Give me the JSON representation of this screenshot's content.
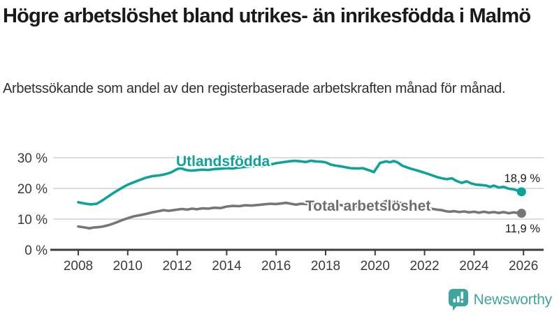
{
  "header": {
    "title": "Högre arbetslöshet bland utrikes- än inrikesfödda i Malmö",
    "subtitle": "Arbetssökande som andel av den registerbaserade arbetskraften månad för månad."
  },
  "chart_data": {
    "type": "line",
    "title": "Högre arbetslöshet bland utrikes- än inrikesfödda i Malmö",
    "xlabel": "",
    "ylabel": "",
    "grid": "horizontal",
    "legend": "inline-labels",
    "x_axis": {
      "ticks": [
        2008,
        2010,
        2012,
        2014,
        2016,
        2018,
        2020,
        2022,
        2024,
        2026
      ],
      "tick_labels": [
        "2008",
        "2010",
        "2012",
        "2014",
        "2016",
        "2018",
        "2020",
        "2022",
        "2024",
        "2026"
      ],
      "range": [
        2007,
        2026.7
      ]
    },
    "y_axis": {
      "ticks": [
        0,
        10,
        20,
        30
      ],
      "tick_labels": [
        "0 %",
        "10 %",
        "20 %",
        "30 %"
      ],
      "range": [
        0,
        32
      ],
      "unit": "%"
    },
    "series": [
      {
        "name": "Utlandsfödda",
        "color": "#0ba39a",
        "label_color": "#0ba39a",
        "end_label": "18,9 %",
        "end_value": 18.9,
        "points": [
          [
            2008.0,
            15.5
          ],
          [
            2008.25,
            15.1
          ],
          [
            2008.5,
            14.8
          ],
          [
            2008.75,
            15.0
          ],
          [
            2009.0,
            16.2
          ],
          [
            2009.25,
            17.6
          ],
          [
            2009.5,
            18.9
          ],
          [
            2009.75,
            20.1
          ],
          [
            2010.0,
            21.2
          ],
          [
            2010.25,
            22.0
          ],
          [
            2010.5,
            22.8
          ],
          [
            2010.75,
            23.5
          ],
          [
            2011.0,
            24.0
          ],
          [
            2011.25,
            24.2
          ],
          [
            2011.5,
            24.6
          ],
          [
            2011.75,
            25.2
          ],
          [
            2012.0,
            26.3
          ],
          [
            2012.15,
            26.6
          ],
          [
            2012.35,
            26.0
          ],
          [
            2012.55,
            25.8
          ],
          [
            2012.75,
            25.9
          ],
          [
            2013.0,
            26.1
          ],
          [
            2013.25,
            26.0
          ],
          [
            2013.5,
            26.3
          ],
          [
            2013.75,
            26.4
          ],
          [
            2014.0,
            26.6
          ],
          [
            2014.25,
            26.5
          ],
          [
            2014.5,
            26.8
          ],
          [
            2014.75,
            27.0
          ],
          [
            2015.0,
            27.2
          ],
          [
            2015.25,
            27.3
          ],
          [
            2015.5,
            27.2
          ],
          [
            2015.75,
            27.7
          ],
          [
            2016.0,
            28.2
          ],
          [
            2016.25,
            28.5
          ],
          [
            2016.5,
            28.8
          ],
          [
            2016.75,
            29.0
          ],
          [
            2017.0,
            28.8
          ],
          [
            2017.2,
            28.6
          ],
          [
            2017.4,
            29.0
          ],
          [
            2017.6,
            28.8
          ],
          [
            2017.8,
            28.7
          ],
          [
            2018.0,
            28.5
          ],
          [
            2018.2,
            27.8
          ],
          [
            2018.4,
            27.4
          ],
          [
            2018.6,
            27.2
          ],
          [
            2018.8,
            26.9
          ],
          [
            2019.0,
            26.6
          ],
          [
            2019.3,
            26.5
          ],
          [
            2019.5,
            26.6
          ],
          [
            2019.8,
            25.8
          ],
          [
            2019.95,
            25.3
          ],
          [
            2020.2,
            28.3
          ],
          [
            2020.45,
            28.8
          ],
          [
            2020.6,
            28.5
          ],
          [
            2020.75,
            28.9
          ],
          [
            2020.9,
            28.5
          ],
          [
            2021.1,
            27.4
          ],
          [
            2021.3,
            26.8
          ],
          [
            2021.5,
            26.3
          ],
          [
            2021.75,
            25.7
          ],
          [
            2022.0,
            25.1
          ],
          [
            2022.25,
            24.4
          ],
          [
            2022.5,
            23.7
          ],
          [
            2022.7,
            23.3
          ],
          [
            2022.9,
            23.0
          ],
          [
            2023.1,
            23.3
          ],
          [
            2023.3,
            22.4
          ],
          [
            2023.5,
            21.8
          ],
          [
            2023.7,
            22.3
          ],
          [
            2023.9,
            21.6
          ],
          [
            2024.1,
            21.2
          ],
          [
            2024.3,
            21.1
          ],
          [
            2024.5,
            20.9
          ],
          [
            2024.65,
            20.5
          ],
          [
            2024.8,
            20.9
          ],
          [
            2025.0,
            20.3
          ],
          [
            2025.2,
            20.5
          ],
          [
            2025.4,
            19.9
          ],
          [
            2025.6,
            19.7
          ],
          [
            2025.75,
            19.3
          ],
          [
            2025.92,
            18.9
          ]
        ]
      },
      {
        "name": "Total arbetslöshet",
        "color": "#767676",
        "label_color": "#6e6e6e",
        "end_label": "11,9 %",
        "end_value": 11.9,
        "points": [
          [
            2008.0,
            7.6
          ],
          [
            2008.25,
            7.3
          ],
          [
            2008.45,
            7.0
          ],
          [
            2008.65,
            7.3
          ],
          [
            2008.85,
            7.4
          ],
          [
            2009.0,
            7.6
          ],
          [
            2009.25,
            8.1
          ],
          [
            2009.5,
            8.8
          ],
          [
            2009.75,
            9.6
          ],
          [
            2010.0,
            10.3
          ],
          [
            2010.25,
            10.9
          ],
          [
            2010.5,
            11.3
          ],
          [
            2010.75,
            11.7
          ],
          [
            2011.0,
            12.2
          ],
          [
            2011.25,
            12.6
          ],
          [
            2011.45,
            12.9
          ],
          [
            2011.65,
            12.7
          ],
          [
            2011.85,
            12.9
          ],
          [
            2012.0,
            13.1
          ],
          [
            2012.2,
            13.3
          ],
          [
            2012.4,
            13.1
          ],
          [
            2012.6,
            13.4
          ],
          [
            2012.8,
            13.2
          ],
          [
            2013.0,
            13.5
          ],
          [
            2013.25,
            13.4
          ],
          [
            2013.5,
            13.7
          ],
          [
            2013.75,
            13.6
          ],
          [
            2014.0,
            14.1
          ],
          [
            2014.25,
            14.3
          ],
          [
            2014.5,
            14.2
          ],
          [
            2014.75,
            14.5
          ],
          [
            2015.0,
            14.4
          ],
          [
            2015.25,
            14.6
          ],
          [
            2015.5,
            14.8
          ],
          [
            2015.75,
            15.0
          ],
          [
            2016.0,
            14.9
          ],
          [
            2016.2,
            15.1
          ],
          [
            2016.4,
            15.3
          ],
          [
            2016.6,
            15.0
          ],
          [
            2016.8,
            14.7
          ],
          [
            2017.0,
            15.0
          ],
          [
            2017.25,
            14.9
          ],
          [
            2017.5,
            15.1
          ],
          [
            2017.75,
            14.9
          ],
          [
            2018.0,
            14.8
          ],
          [
            2018.25,
            14.6
          ],
          [
            2018.5,
            14.7
          ],
          [
            2018.75,
            14.4
          ],
          [
            2019.0,
            14.3
          ],
          [
            2019.25,
            14.2
          ],
          [
            2019.5,
            14.1
          ],
          [
            2019.75,
            14.3
          ],
          [
            2020.0,
            14.2
          ],
          [
            2020.25,
            15.2
          ],
          [
            2020.5,
            16.0
          ],
          [
            2020.75,
            15.6
          ],
          [
            2021.0,
            15.3
          ],
          [
            2021.25,
            15.0
          ],
          [
            2021.5,
            14.6
          ],
          [
            2021.75,
            14.2
          ],
          [
            2022.0,
            13.8
          ],
          [
            2022.25,
            13.4
          ],
          [
            2022.5,
            13.1
          ],
          [
            2022.7,
            12.9
          ],
          [
            2022.85,
            12.6
          ],
          [
            2023.0,
            12.4
          ],
          [
            2023.2,
            12.6
          ],
          [
            2023.4,
            12.3
          ],
          [
            2023.6,
            12.5
          ],
          [
            2023.8,
            12.2
          ],
          [
            2024.0,
            12.4
          ],
          [
            2024.2,
            12.1
          ],
          [
            2024.4,
            12.4
          ],
          [
            2024.6,
            12.1
          ],
          [
            2024.8,
            12.3
          ],
          [
            2025.0,
            12.0
          ],
          [
            2025.2,
            12.3
          ],
          [
            2025.4,
            11.9
          ],
          [
            2025.6,
            12.2
          ],
          [
            2025.75,
            12.0
          ],
          [
            2025.92,
            11.9
          ]
        ]
      }
    ]
  },
  "colors": {
    "accent_teal": "#0ba39a",
    "series_gray": "#767676",
    "gridline": "#dcdcdc",
    "axis": "#3d3d3d",
    "brand": "#3fa69d"
  },
  "footer": {
    "brand": "Newsworthy",
    "icon": "bar-chart-speech-bubble-icon"
  }
}
